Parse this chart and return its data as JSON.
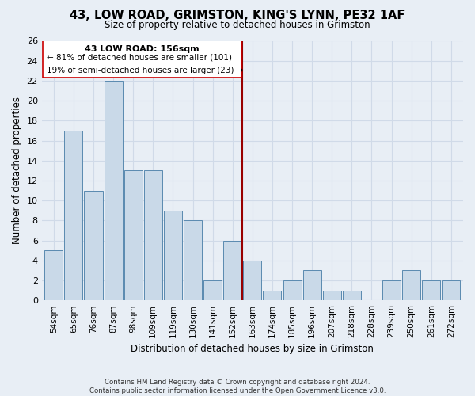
{
  "title": "43, LOW ROAD, GRIMSTON, KING'S LYNN, PE32 1AF",
  "subtitle": "Size of property relative to detached houses in Grimston",
  "xlabel": "Distribution of detached houses by size in Grimston",
  "ylabel": "Number of detached properties",
  "categories": [
    "54sqm",
    "65sqm",
    "76sqm",
    "87sqm",
    "98sqm",
    "109sqm",
    "119sqm",
    "130sqm",
    "141sqm",
    "152sqm",
    "163sqm",
    "174sqm",
    "185sqm",
    "196sqm",
    "207sqm",
    "218sqm",
    "228sqm",
    "239sqm",
    "250sqm",
    "261sqm",
    "272sqm"
  ],
  "values": [
    5,
    17,
    11,
    22,
    13,
    13,
    9,
    8,
    2,
    6,
    4,
    1,
    2,
    3,
    1,
    1,
    0,
    2,
    3,
    2,
    2
  ],
  "bar_color": "#c9d9e8",
  "bar_edge_color": "#5a8ab0",
  "annotation_title": "43 LOW ROAD: 156sqm",
  "annotation_line1": "← 81% of detached houses are smaller (101)",
  "annotation_line2": "19% of semi-detached houses are larger (23) →",
  "vline_x_index": 9.5,
  "vline_color": "#990000",
  "box_color": "#cc0000",
  "ylim": [
    0,
    26
  ],
  "yticks": [
    0,
    2,
    4,
    6,
    8,
    10,
    12,
    14,
    16,
    18,
    20,
    22,
    24,
    26
  ],
  "bg_color": "#e8eef5",
  "grid_color": "#d0dae8",
  "footer_line1": "Contains HM Land Registry data © Crown copyright and database right 2024.",
  "footer_line2": "Contains public sector information licensed under the Open Government Licence v3.0."
}
